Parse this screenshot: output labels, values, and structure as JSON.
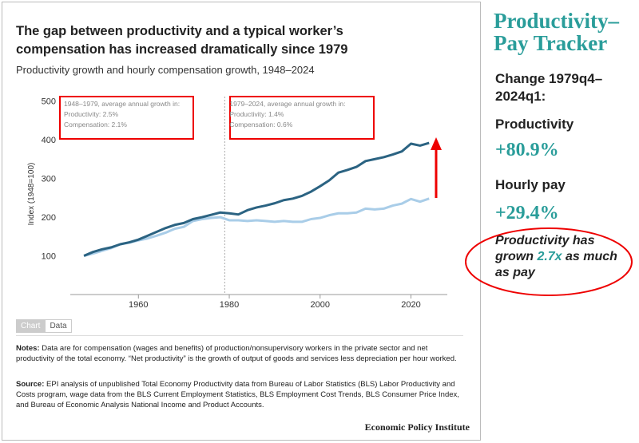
{
  "chart_data": {
    "type": "line",
    "title": "The gap between productivity and a typical worker’s compensation has increased dramatically since 1979",
    "subtitle": "Productivity growth and hourly compensation growth, 1948–2024",
    "y_label": "Index (1948=100)",
    "x": [
      1948,
      1950,
      1952,
      1954,
      1956,
      1958,
      1960,
      1962,
      1964,
      1966,
      1968,
      1970,
      1972,
      1974,
      1976,
      1978,
      1980,
      1982,
      1984,
      1986,
      1988,
      1990,
      1992,
      1994,
      1996,
      1998,
      2000,
      2002,
      2004,
      2006,
      2008,
      2010,
      2012,
      2014,
      2016,
      2018,
      2020,
      2022,
      2024
    ],
    "series": [
      {
        "color": "#2b6382",
        "values": [
          100,
          110,
          117,
          122,
          130,
          135,
          142,
          152,
          162,
          172,
          180,
          185,
          195,
          200,
          206,
          212,
          210,
          207,
          218,
          225,
          230,
          236,
          244,
          248,
          255,
          266,
          280,
          295,
          315,
          322,
          330,
          345,
          350,
          355,
          362,
          370,
          390,
          385,
          392
        ]
      },
      {
        "color": "#a9cde8",
        "values": [
          100,
          106,
          113,
          120,
          130,
          134,
          140,
          145,
          152,
          160,
          170,
          175,
          190,
          195,
          198,
          200,
          192,
          192,
          190,
          192,
          190,
          188,
          190,
          188,
          188,
          195,
          198,
          205,
          210,
          210,
          212,
          222,
          220,
          222,
          230,
          235,
          247,
          240,
          248
        ]
      }
    ],
    "xlim": [
      1945,
      2028
    ],
    "ylim": [
      0,
      520
    ],
    "xticks": [
      1960,
      1980,
      2000,
      2020
    ],
    "yticks": [
      100,
      200,
      300,
      400,
      500
    ],
    "grid": false,
    "vline_x": 1979,
    "annotations": [
      {
        "lines": [
          "1948–1979, average annual growth in:",
          "Productivity: 2.5%",
          "Compensation: 2.1%"
        ]
      },
      {
        "lines": [
          "1979–2024, average annual growth in:",
          "Productivity: 1.4%",
          "Compensation: 0.6%"
        ]
      }
    ]
  },
  "tabs": [
    "Chart",
    "Data"
  ],
  "notes": {
    "label": "Notes:",
    "text": "Data are for compensation (wages and benefits) of production/nonsupervisory workers in the private sector and net productivity of the total economy. “Net productivity” is the growth of output of goods and services less depreciation per hour worked."
  },
  "source": {
    "label": "Source:",
    "text": "EPI analysis of unpublished Total Economy Productivity data from Bureau of Labor Statistics (BLS) Labor Productivity and Costs program, wage data from the BLS Current Employment Statistics, BLS Employment Cost Trends, BLS Consumer Price Index, and Bureau of Economic Analysis National Income and Product Accounts."
  },
  "footer": "Economic Policy Institute",
  "sidebar": {
    "title": [
      "Productivity–",
      "Pay Tracker"
    ],
    "period": "Change 1979q4–2024q1:",
    "items": [
      {
        "label": "Productivity",
        "value": "+80.9%"
      },
      {
        "label": "Hourly pay",
        "value": "+29.4%"
      }
    ],
    "summary": [
      "Productivity has grown ",
      "2.7x",
      " as much as pay"
    ]
  }
}
